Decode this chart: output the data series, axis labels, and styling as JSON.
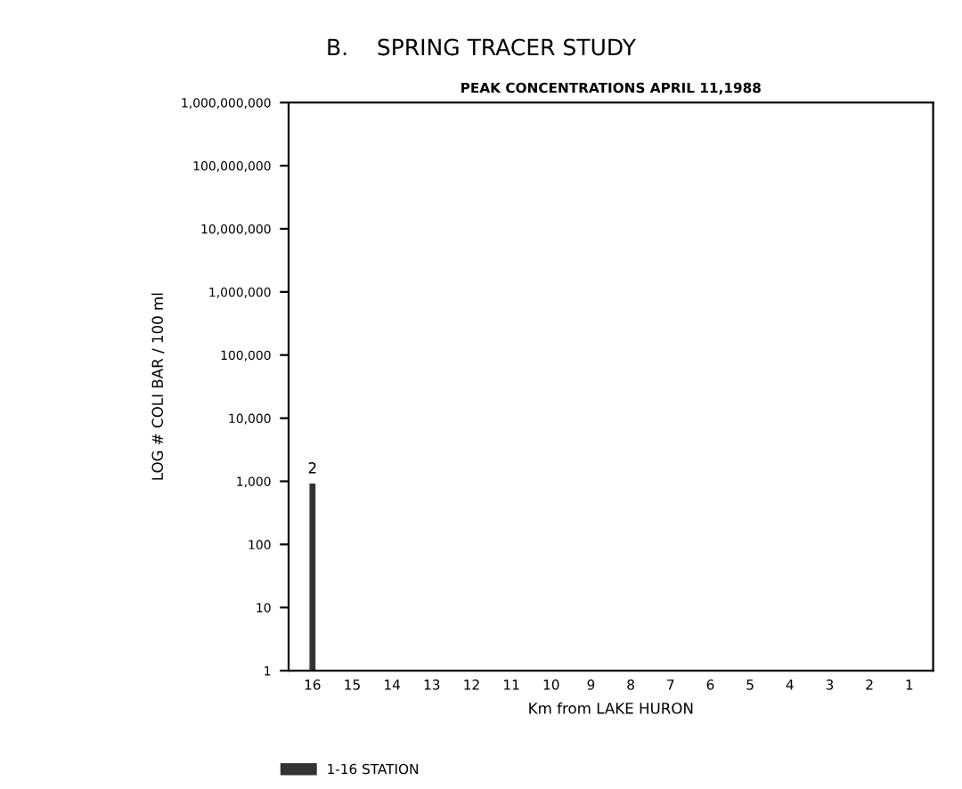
{
  "chart_data": {
    "type": "bar",
    "title": "B.    SPRING TRACER STUDY",
    "subtitle": "PEAK CONCENTRATIONS APRIL 11,1988",
    "xlabel": "Km from LAKE HURON",
    "ylabel": "LOG # COLI BAR / 100 ml",
    "categories": [
      "16",
      "15",
      "14",
      "13",
      "12",
      "11",
      "10",
      "9",
      "8",
      "7",
      "6",
      "5",
      "4",
      "3",
      "2",
      "1"
    ],
    "series": [
      {
        "name": "1-16 STATION",
        "color": "#333333",
        "values": [
          900,
          null,
          null,
          null,
          null,
          null,
          null,
          null,
          null,
          null,
          null,
          null,
          null,
          null,
          null,
          null
        ]
      }
    ],
    "log": "y",
    "ylim": [
      1,
      1000000000
    ],
    "yticks": [
      {
        "value": 1,
        "label": "1"
      },
      {
        "value": 10,
        "label": "10"
      },
      {
        "value": 100,
        "label": "100"
      },
      {
        "value": 1000,
        "label": "1,000"
      },
      {
        "value": 10000,
        "label": "10,000"
      },
      {
        "value": 100000,
        "label": "100,000"
      },
      {
        "value": 1000000,
        "label": "1,000,000"
      },
      {
        "value": 10000000,
        "label": "10,000,000"
      },
      {
        "value": 100000000,
        "label": "100,000,000"
      },
      {
        "value": 1000000000,
        "label": "1,000,000,000"
      }
    ],
    "annotations": [
      {
        "text": "2",
        "x": "16",
        "y": 1000
      }
    ],
    "legend": "bottom left",
    "grid": false
  }
}
